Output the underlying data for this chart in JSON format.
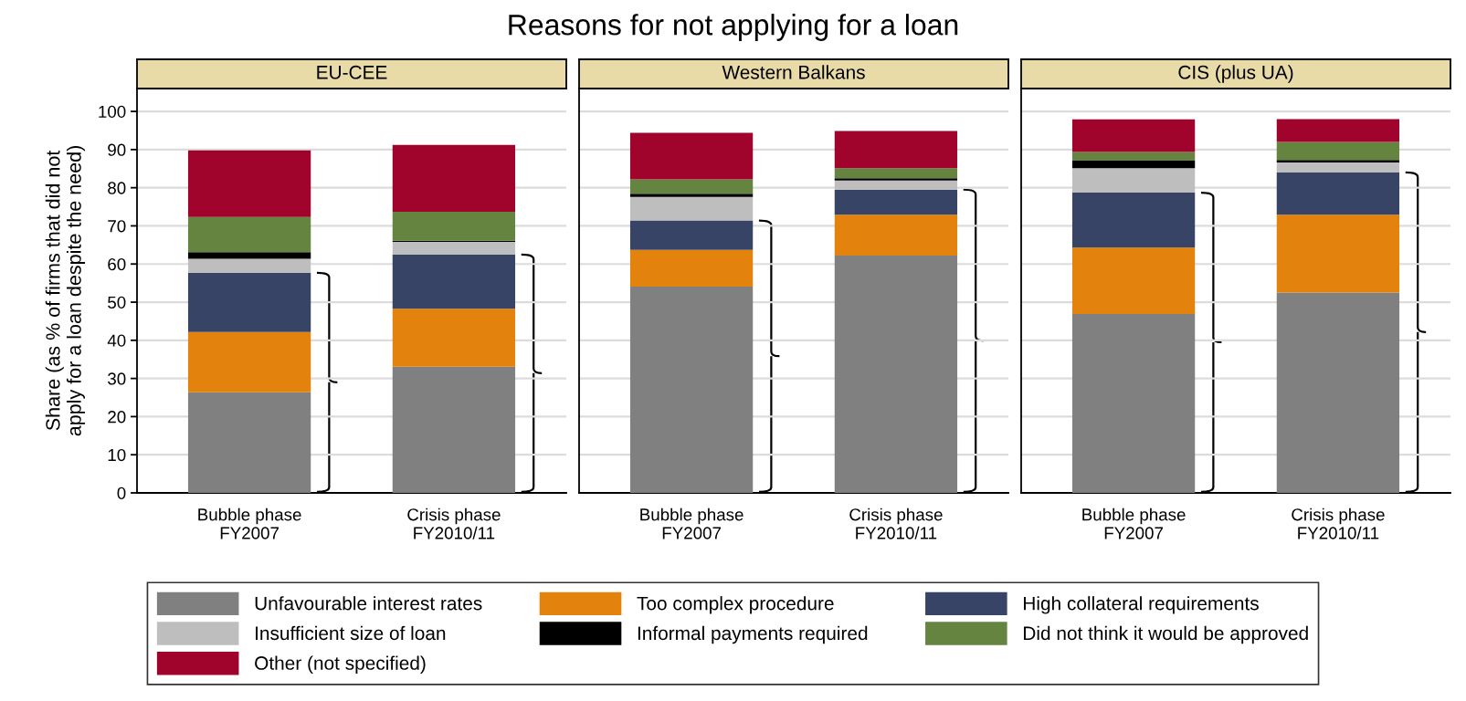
{
  "chart_data": [
    {
      "type": "bar",
      "title": "EU-CEE",
      "annotations": [
        "Reasons for not applying for a loan"
      ],
      "ylabel": "Share (as % of firms that did not\napply for a loan despite the need)",
      "categories": [
        "Bubble phase\nFY2007",
        "Crisis phase\nFY2010/11"
      ],
      "stacked": true,
      "ylim": [
        0,
        106
      ],
      "yticks": [
        0,
        10,
        20,
        30,
        40,
        50,
        60,
        70,
        80,
        90,
        100
      ],
      "grid": "y",
      "legend": "bottom",
      "series": [
        {
          "name": "Unfavourable interest rates",
          "color": "#808080",
          "values": [
            26.4,
            33.1
          ]
        },
        {
          "name": "Too complex procedure",
          "color": "#e4820e",
          "values": [
            15.8,
            15.2
          ]
        },
        {
          "name": "High collateral requirements",
          "color": "#374466",
          "values": [
            15.5,
            14.2
          ]
        },
        {
          "name": "Insufficient size of loan",
          "color": "#bebebe",
          "values": [
            3.7,
            3.3
          ]
        },
        {
          "name": "Informal payments required",
          "color": "#000000",
          "values": [
            1.7,
            0.3
          ]
        },
        {
          "name": "Did not think it would be approved",
          "color": "#65843f",
          "values": [
            9.2,
            7.6
          ]
        },
        {
          "name": "Other (not specified)",
          "color": "#a0042c",
          "values": [
            17.5,
            17.5
          ]
        }
      ]
    },
    {
      "type": "bar",
      "title": "Western Balkans",
      "categories": [
        "Bubble phase\nFY2007",
        "Crisis phase\nFY2010/11"
      ],
      "stacked": true,
      "ylim": [
        0,
        106
      ],
      "yticks": [
        0,
        10,
        20,
        30,
        40,
        50,
        60,
        70,
        80,
        90,
        100
      ],
      "grid": "y",
      "tick_labels": "x",
      "series": [
        {
          "color": "#808080",
          "values": [
            54.1,
            62.2
          ]
        },
        {
          "color": "#e4820e",
          "values": [
            9.6,
            10.7
          ]
        },
        {
          "color": "#374466",
          "values": [
            7.7,
            6.6
          ]
        },
        {
          "color": "#bebebe",
          "values": [
            6.2,
            2.4
          ]
        },
        {
          "color": "#000000",
          "values": [
            0.8,
            0.6
          ]
        },
        {
          "color": "#65843f",
          "values": [
            3.8,
            2.6
          ]
        },
        {
          "color": "#a0042c",
          "values": [
            12.2,
            9.8
          ]
        }
      ]
    },
    {
      "type": "bar",
      "title": "CIS (plus UA)",
      "categories": [
        "Bubble phase\nFY2007",
        "Crisis phase\nFY2010/11"
      ],
      "stacked": true,
      "ylim": [
        0,
        106
      ],
      "yticks": [
        0,
        10,
        20,
        30,
        40,
        50,
        60,
        70,
        80,
        90,
        100
      ],
      "grid": "y",
      "tick_labels": "x",
      "series": [
        {
          "color": "#808080",
          "values": [
            46.9,
            52.5
          ]
        },
        {
          "color": "#e4820e",
          "values": [
            17.4,
            20.4
          ]
        },
        {
          "color": "#374466",
          "values": [
            14.4,
            11.1
          ]
        },
        {
          "color": "#bebebe",
          "values": [
            6.4,
            2.6
          ]
        },
        {
          "color": "#000000",
          "values": [
            2.1,
            0.7
          ]
        },
        {
          "color": "#65843f",
          "values": [
            2.2,
            4.7
          ]
        },
        {
          "color": "#a0042c",
          "values": [
            8.5,
            6.0
          ]
        }
      ]
    }
  ]
}
